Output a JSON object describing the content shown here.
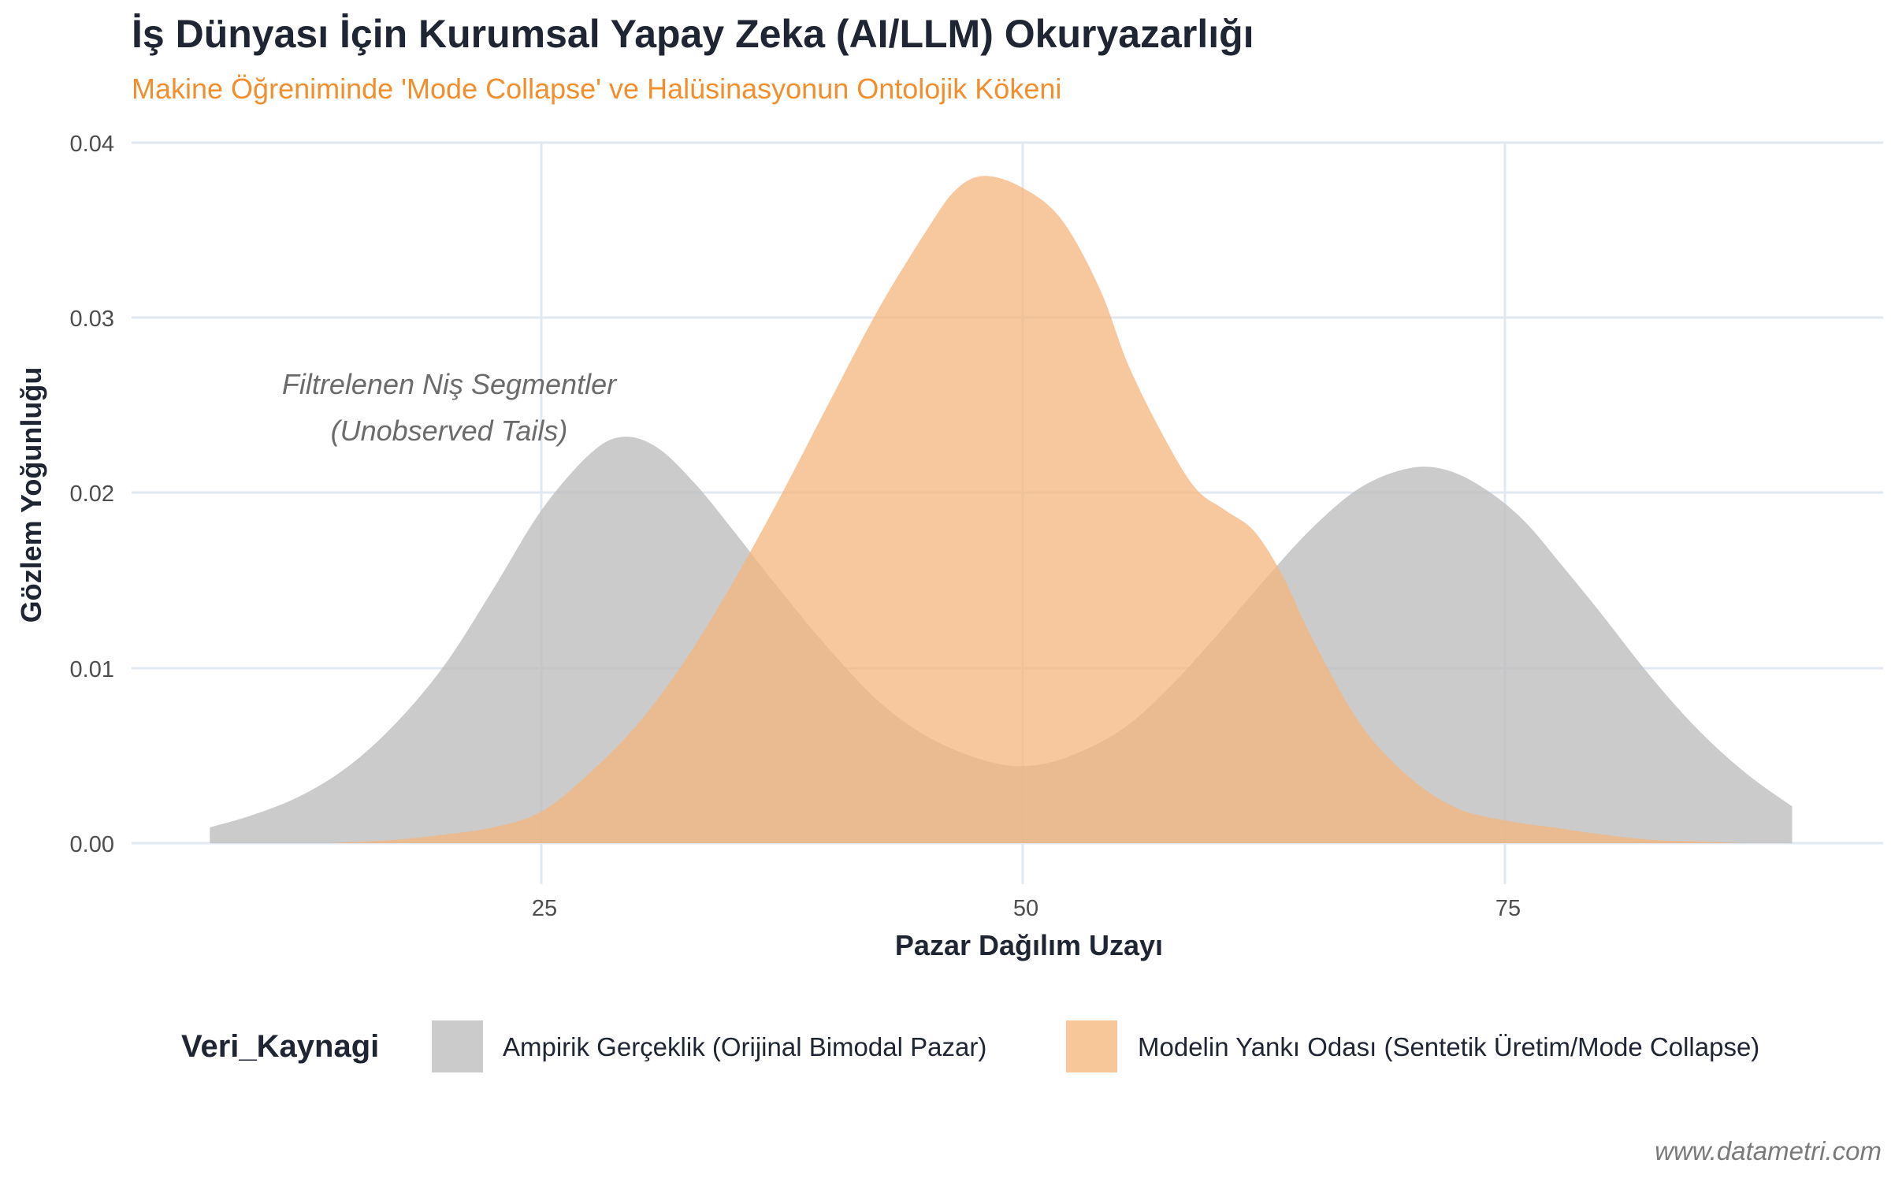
{
  "header": {
    "title": "İş Dünyası İçin Kurumsal Yapay Zeka (AI/LLM) Okuryazarlığı",
    "subtitle": "Makine Öğreniminde 'Mode Collapse' ve Halüsinasyonun Ontolojik Kökeni"
  },
  "annotation": {
    "line1": "Filtrelenen Niş Segmentler",
    "line2": "(Unobserved Tails)"
  },
  "legend": {
    "title": "Veri_Kaynagi",
    "items": [
      {
        "label": "Ampirik Gerçeklik (Orijinal Bimodal Pazar)",
        "color": "#CBCBCB"
      },
      {
        "label": "Modelin Yankı Odası (Sentetik Üretim/Mode Collapse)",
        "color": "#F7C699"
      }
    ]
  },
  "watermark": "www.datametri.com",
  "colors": {
    "title": "#1F2532",
    "subtitle": "#F28E2B",
    "gray_fill": "#BDBDBD",
    "orange_fill": "#F4B67D",
    "grid": "#E2E8F0"
  },
  "chart_data": {
    "type": "area",
    "subtype": "density",
    "title": "İş Dünyası İçin Kurumsal Yapay Zeka (AI/LLM) Okuryazarlığı",
    "subtitle": "Makine Öğreniminde 'Mode Collapse' ve Halüsinasyonun Ontolojik Kökeni",
    "xlabel": "Pazar Dağılım Uzayı",
    "ylabel": "Gözlem Yoğunluğu",
    "xlim": [
      5,
      92
    ],
    "ylim": [
      0,
      0.04
    ],
    "xticks": [
      "25",
      "50",
      "75"
    ],
    "xtick_values": [
      25,
      50,
      75
    ],
    "yticks": [
      "0.00",
      "0.01",
      "0.02",
      "0.03",
      "0.04"
    ],
    "ytick_values": [
      0,
      0.01,
      0.02,
      0.03,
      0.04
    ],
    "grid": true,
    "legend_position": "bottom",
    "legend_title": "Veri_Kaynagi",
    "annotations": [
      {
        "text": "Filtrelenen Niş Segmentler\n(Unobserved Tails)",
        "x": 20,
        "y": 0.0245
      }
    ],
    "series": [
      {
        "name": "Ampirik Gerçeklik (Orijinal Bimodal Pazar)",
        "color": "#BDBDBD",
        "x": [
          7.8,
          10,
          12.5,
          15,
          17.5,
          20,
          22.5,
          25,
          27.5,
          29.2,
          31,
          33,
          35,
          37.5,
          40,
          42.5,
          45,
          47.5,
          49.7,
          52,
          55,
          57.5,
          60,
          62.5,
          65,
          67.5,
          70,
          72,
          74,
          76,
          78,
          80,
          82.5,
          85,
          87.5,
          89.9
        ],
        "y": [
          0.0009,
          0.0016,
          0.0027,
          0.0044,
          0.0069,
          0.0102,
          0.0145,
          0.019,
          0.0222,
          0.0232,
          0.0226,
          0.0205,
          0.0178,
          0.0143,
          0.011,
          0.0081,
          0.0061,
          0.0049,
          0.0044,
          0.0048,
          0.0064,
          0.0088,
          0.0118,
          0.015,
          0.018,
          0.0203,
          0.0214,
          0.0213,
          0.0202,
          0.0184,
          0.0158,
          0.0131,
          0.0096,
          0.0065,
          0.004,
          0.0021
        ]
      },
      {
        "name": "Modelin Yankı Odası (Sentetik Üretim/Mode Collapse)",
        "color": "#F4B67D",
        "x": [
          14,
          17.5,
          20,
          22.5,
          25,
          27.5,
          30,
          32.5,
          35,
          37.5,
          40,
          42.5,
          45,
          46.5,
          48,
          50,
          52,
          54,
          55.5,
          57.5,
          59,
          60.5,
          62,
          63.5,
          65,
          67.5,
          70,
          72.5,
          75,
          77.5,
          80,
          82.5,
          85,
          87.5,
          89.9
        ],
        "y": [
          0.0,
          0.0002,
          0.0005,
          0.0009,
          0.0018,
          0.004,
          0.0068,
          0.0105,
          0.015,
          0.02,
          0.0253,
          0.0305,
          0.035,
          0.0373,
          0.0381,
          0.0374,
          0.0356,
          0.0316,
          0.0272,
          0.0228,
          0.0202,
          0.019,
          0.0178,
          0.0152,
          0.0117,
          0.0068,
          0.0038,
          0.002,
          0.0013,
          0.0009,
          0.0005,
          0.0002,
          0.0001,
          0.0,
          0.0
        ]
      }
    ]
  }
}
